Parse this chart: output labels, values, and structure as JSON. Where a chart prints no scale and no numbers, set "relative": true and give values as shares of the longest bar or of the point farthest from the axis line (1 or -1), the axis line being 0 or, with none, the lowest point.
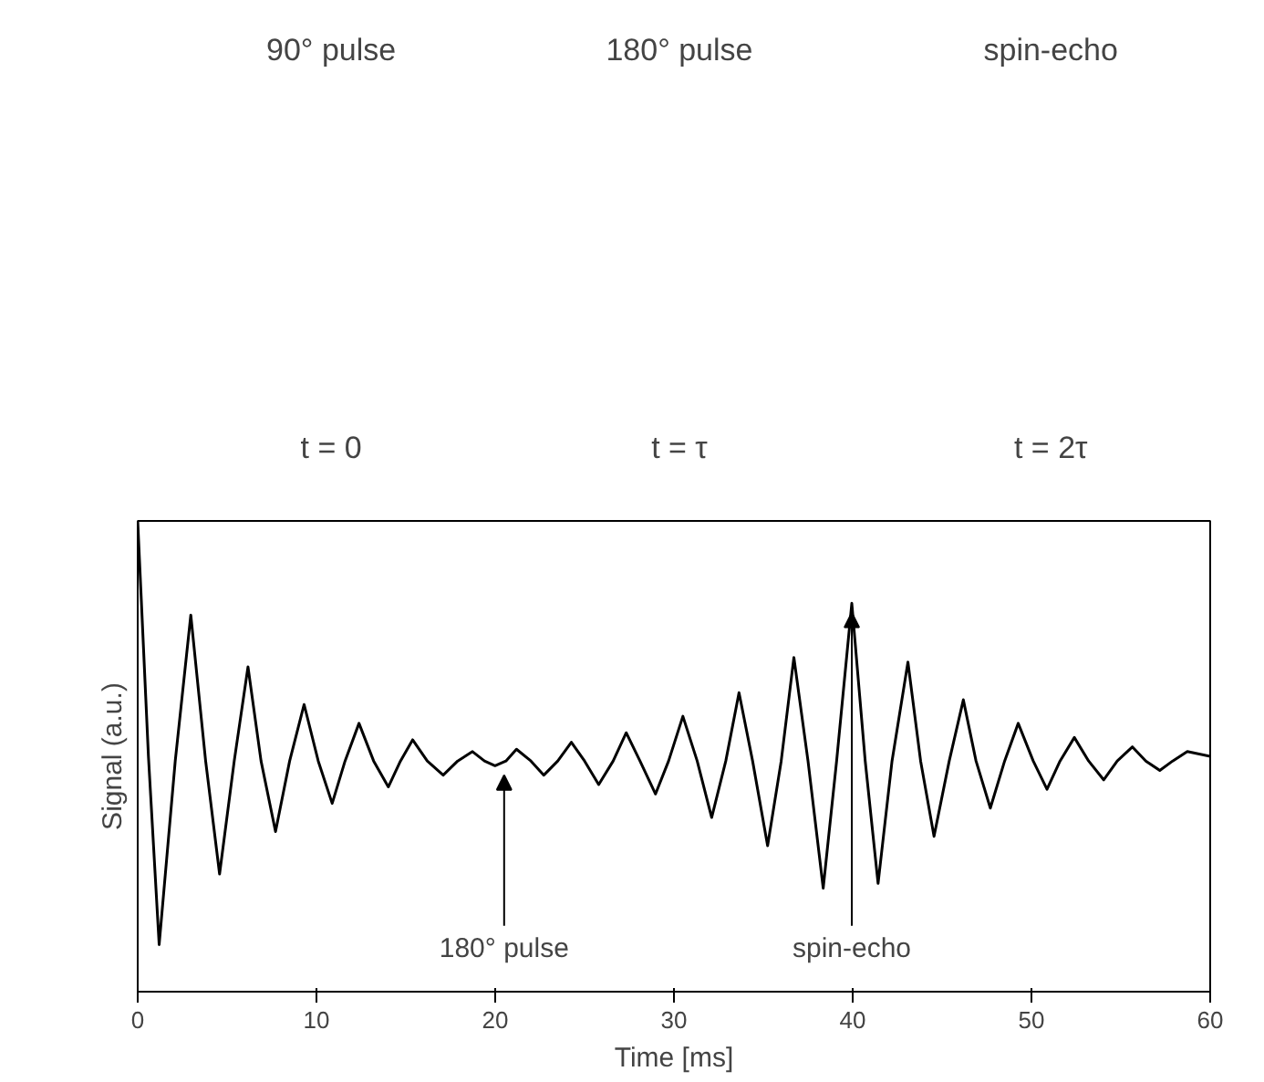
{
  "chart_data": {
    "type": "line",
    "xlabel": "Time [ms]",
    "ylabel": "Signal (a.u.)",
    "relative": true,
    "grid": false,
    "marker": "none",
    "line_style": "solid",
    "color": "#000000",
    "x": [
      0,
      0.6,
      1.2,
      2.1,
      2.97,
      3.8,
      4.58,
      5.4,
      6.17,
      6.9,
      7.71,
      8.5,
      9.31,
      10.1,
      10.88,
      11.6,
      12.38,
      13.2,
      14.02,
      14.7,
      15.38,
      16.2,
      17.09,
      17.9,
      18.73,
      19.4,
      19.99,
      20.6,
      21.19,
      22.0,
      22.72,
      23.5,
      24.26,
      25.0,
      25.79,
      26.6,
      27.33,
      28.1,
      28.97,
      29.7,
      30.5,
      31.3,
      32.11,
      32.9,
      33.64,
      34.4,
      35.24,
      36.0,
      36.71,
      37.5,
      38.35,
      39.1,
      39.95,
      40.7,
      41.42,
      42.2,
      43.09,
      43.8,
      44.55,
      45.4,
      46.19,
      46.9,
      47.7,
      48.5,
      49.26,
      50.1,
      50.87,
      51.6,
      52.4,
      53.2,
      54.04,
      54.8,
      55.65,
      56.4,
      57.18,
      57.9,
      58.72,
      60
    ],
    "values": [
      1.0,
      0.5,
      0.1,
      0.49,
      0.8,
      0.49,
      0.25,
      0.49,
      0.69,
      0.49,
      0.34,
      0.49,
      0.61,
      0.49,
      0.4,
      0.49,
      0.57,
      0.49,
      0.435,
      0.49,
      0.535,
      0.49,
      0.46,
      0.49,
      0.51,
      0.49,
      0.48,
      0.49,
      0.515,
      0.49,
      0.46,
      0.49,
      0.53,
      0.49,
      0.44,
      0.49,
      0.55,
      0.49,
      0.42,
      0.49,
      0.585,
      0.49,
      0.37,
      0.49,
      0.635,
      0.49,
      0.31,
      0.49,
      0.71,
      0.49,
      0.22,
      0.49,
      0.825,
      0.49,
      0.23,
      0.49,
      0.7,
      0.49,
      0.33,
      0.49,
      0.62,
      0.49,
      0.39,
      0.49,
      0.57,
      0.49,
      0.43,
      0.49,
      0.54,
      0.49,
      0.45,
      0.49,
      0.52,
      0.49,
      0.47,
      0.49,
      0.51,
      0.5
    ],
    "xlim": [
      0,
      60
    ],
    "xticks": [
      0,
      10,
      20,
      30,
      40,
      50,
      60
    ],
    "annotations": [
      "90° pulse",
      "180° pulse",
      "spin-echo",
      "t = 0",
      "t = τ",
      "t = 2τ",
      {
        "text": "180° pulse",
        "x": 20.5,
        "y": 0.48
      },
      {
        "text": "spin-echo",
        "x": 39.95,
        "y": 0.825
      }
    ]
  }
}
